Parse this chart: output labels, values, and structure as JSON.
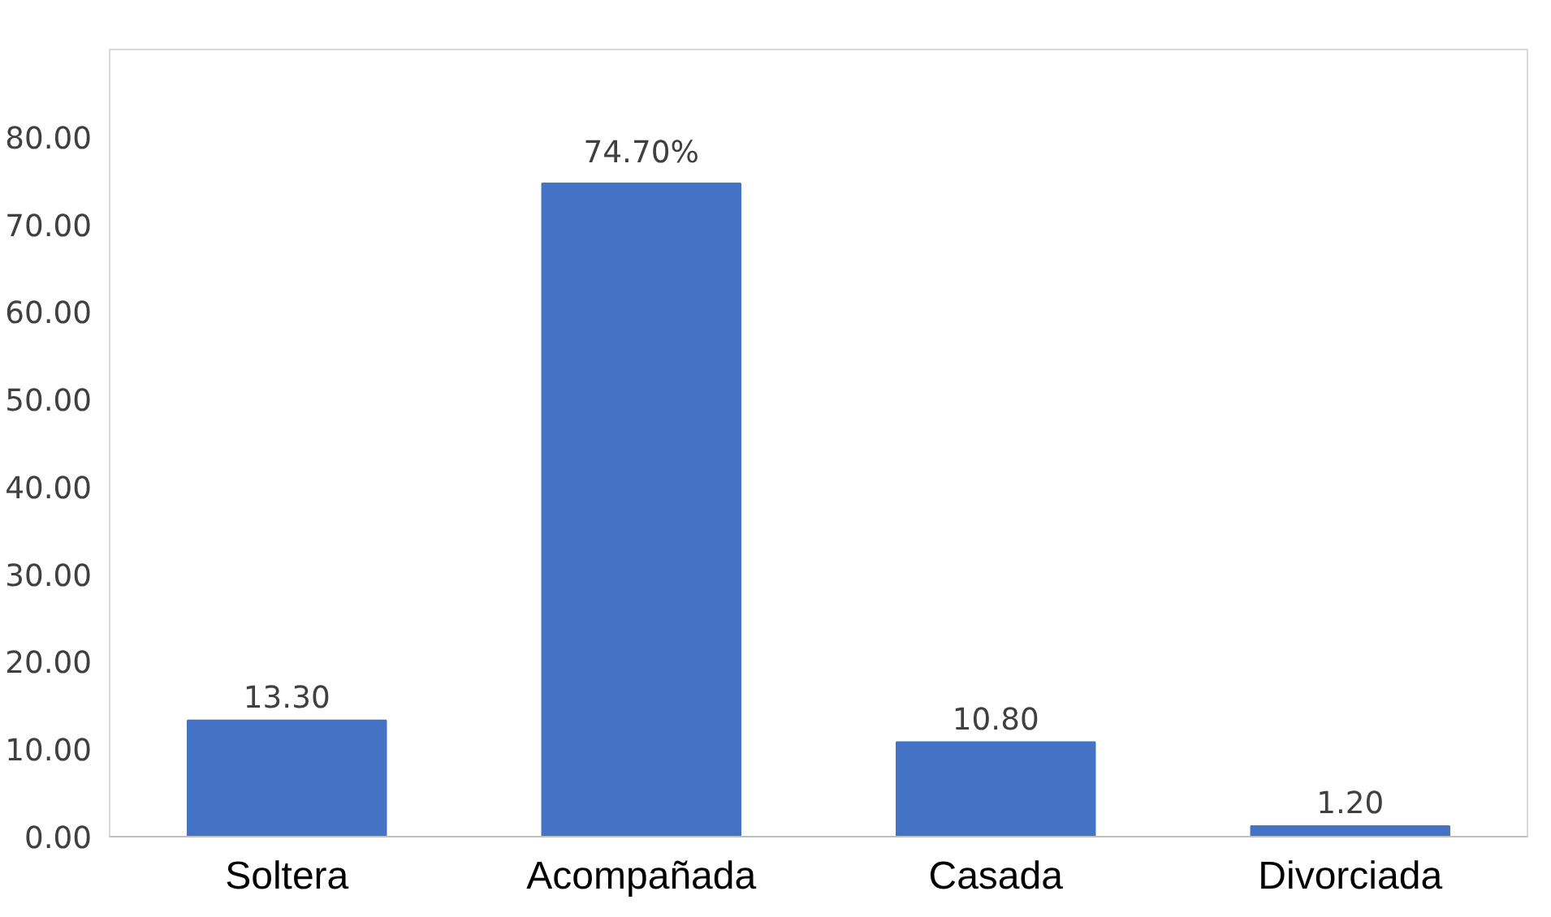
{
  "chart_data": {
    "type": "bar",
    "categories": [
      "Soltera",
      "Acompañada",
      "Casada",
      "Divorciada"
    ],
    "values": [
      13.3,
      74.7,
      10.8,
      1.2
    ],
    "color": "#4472c4",
    "value_labels": [
      "13.30",
      "74.70%",
      "10.80",
      "1.20"
    ],
    "ylim": [
      0,
      90
    ],
    "yticks": [
      {
        "value": 0,
        "label": "0.00"
      },
      {
        "value": 10,
        "label": "10.00"
      },
      {
        "value": 20,
        "label": "20.00"
      },
      {
        "value": 30,
        "label": "30.00"
      },
      {
        "value": 40,
        "label": "40.00"
      },
      {
        "value": 50,
        "label": "50.00"
      },
      {
        "value": 60,
        "label": "60.00"
      },
      {
        "value": 70,
        "label": "70.00"
      },
      {
        "value": 80,
        "label": "80.00"
      }
    ],
    "grid": false
  }
}
